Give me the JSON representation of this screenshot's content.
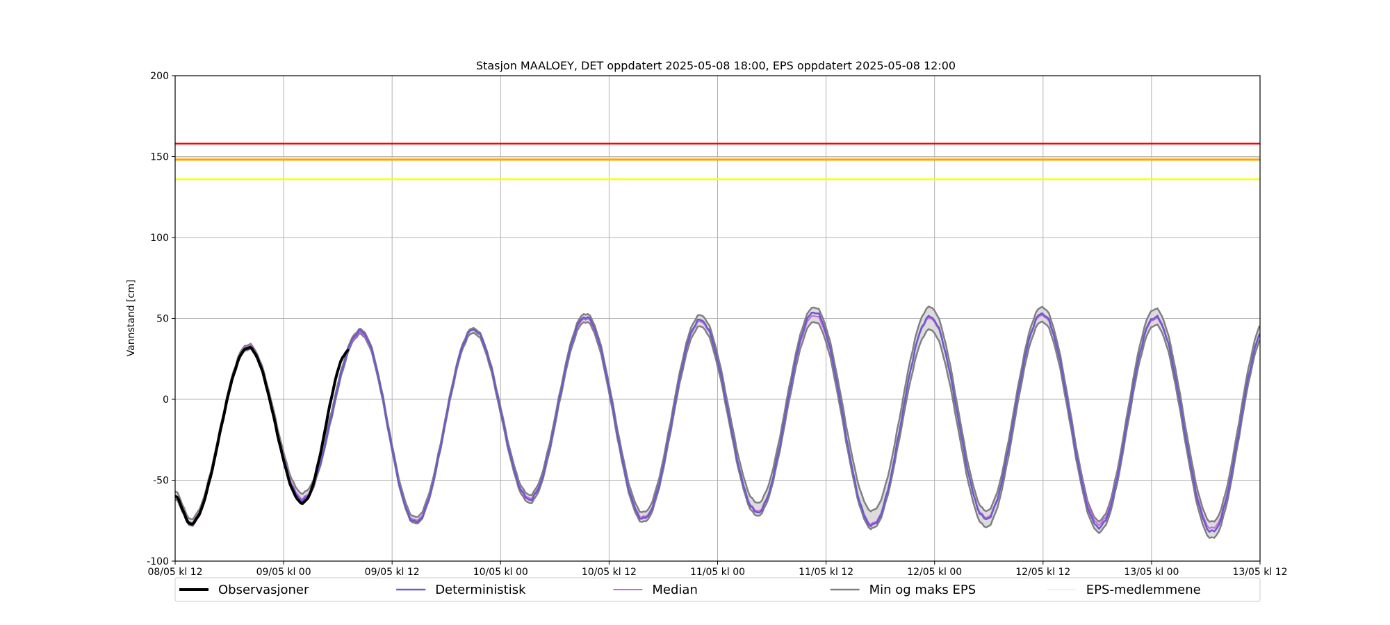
{
  "chart_data": {
    "type": "line",
    "title": "Stasjon MAALOEY, DET oppdatert 2025-05-08 18:00, EPS oppdatert 2025-05-08 12:00",
    "ylabel": "Vannstand [cm]",
    "xlabel": "",
    "xlim_hours": [
      0,
      120
    ],
    "ylim": [
      -100,
      200
    ],
    "yticks": [
      -100,
      -50,
      0,
      50,
      100,
      150,
      200
    ],
    "xticks": [
      {
        "hour": 0,
        "label": "08/05 kl 12"
      },
      {
        "hour": 12,
        "label": "09/05 kl 00"
      },
      {
        "hour": 24,
        "label": "09/05 kl 12"
      },
      {
        "hour": 36,
        "label": "10/05 kl 00"
      },
      {
        "hour": 48,
        "label": "10/05 kl 12"
      },
      {
        "hour": 60,
        "label": "11/05 kl 00"
      },
      {
        "hour": 72,
        "label": "11/05 kl 12"
      },
      {
        "hour": 84,
        "label": "12/05 kl 00"
      },
      {
        "hour": 96,
        "label": "12/05 kl 12"
      },
      {
        "hour": 108,
        "label": "13/05 kl 00"
      },
      {
        "hour": 120,
        "label": "13/05 kl 12"
      }
    ],
    "grid": true,
    "legend_position": "bottom",
    "thresholds": [
      {
        "value": 158,
        "color": "#ff0000"
      },
      {
        "value": 149,
        "color": "#ffd27f"
      },
      {
        "value": 148,
        "color": "#ffa500"
      },
      {
        "value": 136,
        "color": "#ffff00"
      }
    ],
    "extrema": {
      "note_hours_are_data_units": true,
      "det": [
        [
          0,
          -60
        ],
        [
          1.7,
          -77
        ],
        [
          8.1,
          32
        ],
        [
          14.1,
          -62
        ],
        [
          20.5,
          42
        ],
        [
          26.6,
          -76
        ],
        [
          33,
          43
        ],
        [
          39.2,
          -62
        ],
        [
          45.4,
          51
        ],
        [
          51.8,
          -74
        ],
        [
          58.1,
          49
        ],
        [
          64.4,
          -70
        ],
        [
          70.7,
          54
        ],
        [
          77.1,
          -78
        ],
        [
          83.5,
          51
        ],
        [
          89.7,
          -74
        ],
        [
          95.9,
          53
        ],
        [
          102.2,
          -79
        ],
        [
          108.4,
          51
        ],
        [
          114.7,
          -82
        ],
        [
          120.7,
          45
        ],
        [
          121,
          40
        ]
      ],
      "median": [
        [
          0,
          -60
        ],
        [
          1.7,
          -76
        ],
        [
          8.1,
          33
        ],
        [
          14.1,
          -61
        ],
        [
          20.5,
          41
        ],
        [
          26.6,
          -75
        ],
        [
          33,
          43
        ],
        [
          39.2,
          -61
        ],
        [
          45.4,
          50
        ],
        [
          51.8,
          -73
        ],
        [
          58.1,
          48
        ],
        [
          64.4,
          -69
        ],
        [
          70.7,
          52
        ],
        [
          77.1,
          -77
        ],
        [
          83.5,
          50
        ],
        [
          89.7,
          -73
        ],
        [
          95.9,
          52
        ],
        [
          102.2,
          -77
        ],
        [
          108.4,
          50
        ],
        [
          114.7,
          -80
        ],
        [
          120.7,
          44
        ],
        [
          121,
          39
        ]
      ],
      "eps_max": [
        [
          0,
          -57
        ],
        [
          1.7,
          -74
        ],
        [
          8.1,
          34
        ],
        [
          14.1,
          -58
        ],
        [
          20.5,
          43
        ],
        [
          26.6,
          -73
        ],
        [
          33,
          44
        ],
        [
          39.2,
          -59
        ],
        [
          45.4,
          53
        ],
        [
          51.8,
          -70
        ],
        [
          58.1,
          52
        ],
        [
          64.4,
          -64
        ],
        [
          70.7,
          57
        ],
        [
          77.1,
          -69
        ],
        [
          83.5,
          57
        ],
        [
          89.7,
          -69
        ],
        [
          95.9,
          57
        ],
        [
          102.2,
          -75
        ],
        [
          108.4,
          56
        ],
        [
          114.7,
          -76
        ],
        [
          120.7,
          50
        ],
        [
          121,
          45
        ]
      ],
      "eps_min": [
        [
          0,
          -62
        ],
        [
          1.7,
          -78
        ],
        [
          8.1,
          31
        ],
        [
          14.1,
          -63
        ],
        [
          20.5,
          40
        ],
        [
          26.6,
          -77
        ],
        [
          33,
          41
        ],
        [
          39.2,
          -64
        ],
        [
          45.4,
          48
        ],
        [
          51.8,
          -76
        ],
        [
          58.1,
          45
        ],
        [
          64.4,
          -72
        ],
        [
          70.7,
          48
        ],
        [
          77.1,
          -80
        ],
        [
          83.5,
          43
        ],
        [
          89.7,
          -79
        ],
        [
          95.9,
          48
        ],
        [
          102.2,
          -82
        ],
        [
          108.4,
          46
        ],
        [
          114.7,
          -86
        ],
        [
          120.7,
          41
        ],
        [
          121,
          35
        ]
      ],
      "obs": [
        [
          0,
          -60
        ],
        [
          1.7,
          -77
        ],
        [
          8.1,
          32
        ],
        [
          14.1,
          -64
        ],
        [
          19.2,
          30
        ]
      ]
    },
    "series": [
      {
        "name": "Observasjoner",
        "color": "#000000",
        "width": 4
      },
      {
        "name": "Deterministisk",
        "color": "#6a5acd",
        "width": 2.5
      },
      {
        "name": "Median",
        "color": "#c864e6",
        "width": 2
      },
      {
        "name": "Min og maks EPS",
        "color": "#808080",
        "width": 2.5
      },
      {
        "name": "EPS-medlemmene",
        "color": "#e0e0e0",
        "width": 1
      }
    ]
  }
}
